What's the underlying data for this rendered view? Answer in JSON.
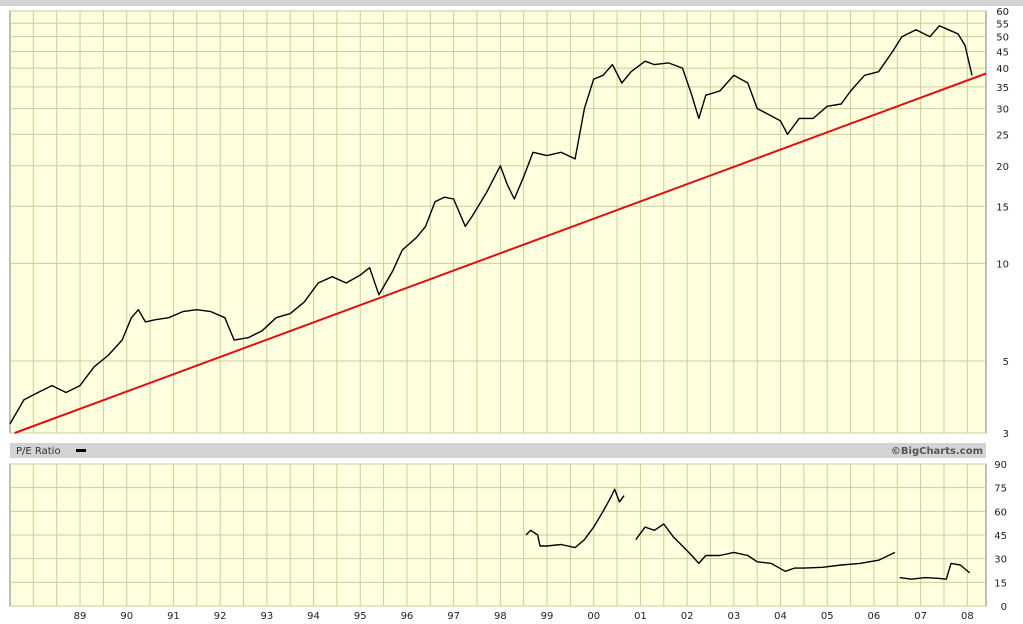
{
  "colors": {
    "panel_bg": "#ffffe0",
    "grid": "#c8cf96",
    "strip_bg": "#d3d3d3",
    "price": "#000000",
    "trend": "#dd1111",
    "frame": "#808080"
  },
  "chart_data": [
    {
      "type": "line",
      "panel": "price",
      "yscale": "log",
      "ylim": [
        3,
        60
      ],
      "ytick_labels": [
        "60",
        "55",
        "50",
        "45",
        "40",
        "35",
        "30",
        "25",
        "20",
        "15",
        "10",
        "5",
        "3"
      ],
      "xlim": [
        1988.0,
        2008.9
      ],
      "series": [
        {
          "points": [
            [
              1988.0,
              3.2
            ],
            [
              1988.3,
              3.8
            ],
            [
              1988.6,
              4.0
            ],
            [
              1988.9,
              4.2
            ],
            [
              1989.2,
              4.0
            ],
            [
              1989.5,
              4.2
            ],
            [
              1989.8,
              4.8
            ],
            [
              1990.1,
              5.2
            ],
            [
              1990.4,
              5.8
            ],
            [
              1990.6,
              6.8
            ],
            [
              1990.75,
              7.2
            ],
            [
              1990.9,
              6.6
            ],
            [
              1991.1,
              6.7
            ],
            [
              1991.4,
              6.8
            ],
            [
              1991.7,
              7.1
            ],
            [
              1992.0,
              7.2
            ],
            [
              1992.3,
              7.1
            ],
            [
              1992.6,
              6.8
            ],
            [
              1992.8,
              5.8
            ],
            [
              1993.1,
              5.9
            ],
            [
              1993.4,
              6.2
            ],
            [
              1993.7,
              6.8
            ],
            [
              1994.0,
              7.0
            ],
            [
              1994.3,
              7.6
            ],
            [
              1994.6,
              8.7
            ],
            [
              1994.9,
              9.1
            ],
            [
              1995.2,
              8.7
            ],
            [
              1995.5,
              9.2
            ],
            [
              1995.7,
              9.7
            ],
            [
              1995.9,
              8.0
            ],
            [
              1996.2,
              9.5
            ],
            [
              1996.4,
              11.0
            ],
            [
              1996.7,
              12.0
            ],
            [
              1996.9,
              13.0
            ],
            [
              1997.1,
              15.5
            ],
            [
              1997.3,
              16.0
            ],
            [
              1997.5,
              15.8
            ],
            [
              1997.75,
              13.0
            ],
            [
              1997.9,
              14.0
            ],
            [
              1998.2,
              16.5
            ],
            [
              1998.5,
              20.0
            ],
            [
              1998.65,
              17.5
            ],
            [
              1998.8,
              15.8
            ],
            [
              1999.0,
              18.5
            ],
            [
              1999.2,
              22.0
            ],
            [
              1999.5,
              21.5
            ],
            [
              1999.8,
              22.0
            ],
            [
              2000.1,
              21.0
            ],
            [
              2000.3,
              30.0
            ],
            [
              2000.5,
              37.0
            ],
            [
              2000.7,
              38.0
            ],
            [
              2000.9,
              41.0
            ],
            [
              2001.1,
              36.0
            ],
            [
              2001.3,
              39.0
            ],
            [
              2001.6,
              42.0
            ],
            [
              2001.8,
              41.0
            ],
            [
              2002.1,
              41.5
            ],
            [
              2002.4,
              40.0
            ],
            [
              2002.6,
              33.0
            ],
            [
              2002.75,
              28.0
            ],
            [
              2002.9,
              33.0
            ],
            [
              2003.2,
              34.0
            ],
            [
              2003.5,
              38.0
            ],
            [
              2003.8,
              36.0
            ],
            [
              2004.0,
              30.0
            ],
            [
              2004.2,
              29.0
            ],
            [
              2004.5,
              27.5
            ],
            [
              2004.65,
              25.0
            ],
            [
              2004.9,
              28.0
            ],
            [
              2005.2,
              28.0
            ],
            [
              2005.5,
              30.5
            ],
            [
              2005.8,
              31.0
            ],
            [
              2006.0,
              34.0
            ],
            [
              2006.3,
              38.0
            ],
            [
              2006.6,
              39.0
            ],
            [
              2006.9,
              45.0
            ],
            [
              2007.1,
              50.0
            ],
            [
              2007.4,
              52.5
            ],
            [
              2007.7,
              50.0
            ],
            [
              2007.9,
              54.0
            ],
            [
              2008.1,
              52.5
            ],
            [
              2008.3,
              51.0
            ],
            [
              2008.45,
              47.0
            ],
            [
              2008.6,
              38.0
            ]
          ]
        },
        {
          "points": [
            [
              1988.1,
              3.0
            ],
            [
              2008.9,
              38.5
            ]
          ]
        }
      ]
    },
    {
      "type": "line",
      "panel": "pe",
      "title": "P/E Ratio",
      "ylim": [
        0,
        90
      ],
      "ytick_labels": [
        "90",
        "75",
        "60",
        "45",
        "30",
        "15",
        "0"
      ],
      "x_tick_labels": [
        "89",
        "90",
        "91",
        "92",
        "93",
        "94",
        "95",
        "96",
        "97",
        "98",
        "99",
        "00",
        "01",
        "02",
        "03",
        "04",
        "05",
        "06",
        "07",
        "08"
      ],
      "series": [
        {
          "points": [
            [
              1999.05,
              45
            ],
            [
              1999.15,
              48
            ],
            [
              1999.3,
              45
            ],
            [
              1999.35,
              38
            ],
            [
              1999.5,
              38
            ],
            [
              1999.8,
              39
            ],
            [
              2000.1,
              37
            ],
            [
              2000.3,
              42
            ],
            [
              2000.5,
              50
            ],
            [
              2000.7,
              60
            ],
            [
              2000.85,
              68
            ],
            [
              2000.95,
              74
            ],
            [
              2001.05,
              66
            ],
            [
              2001.15,
              70
            ]
          ]
        },
        {
          "points": [
            [
              2001.4,
              42
            ],
            [
              2001.6,
              50
            ],
            [
              2001.8,
              48
            ],
            [
              2002.0,
              52
            ],
            [
              2002.2,
              44
            ],
            [
              2002.4,
              38
            ],
            [
              2002.6,
              32
            ],
            [
              2002.75,
              27
            ],
            [
              2002.9,
              32
            ],
            [
              2003.2,
              32
            ],
            [
              2003.5,
              34
            ],
            [
              2003.8,
              32
            ],
            [
              2004.0,
              28
            ],
            [
              2004.3,
              27
            ],
            [
              2004.6,
              22
            ],
            [
              2004.8,
              24
            ],
            [
              2005.0,
              24
            ],
            [
              2005.4,
              24.5
            ],
            [
              2005.8,
              26
            ],
            [
              2006.2,
              27
            ],
            [
              2006.6,
              29
            ],
            [
              2006.95,
              34
            ]
          ]
        },
        {
          "points": [
            [
              2007.05,
              18
            ],
            [
              2007.3,
              17
            ],
            [
              2007.6,
              18
            ],
            [
              2007.9,
              17.5
            ],
            [
              2008.05,
              17
            ],
            [
              2008.15,
              27
            ],
            [
              2008.35,
              26
            ],
            [
              2008.55,
              21
            ]
          ]
        }
      ]
    }
  ],
  "strip": {
    "label": "P/E Ratio",
    "watermark": "©BigCharts.com"
  }
}
